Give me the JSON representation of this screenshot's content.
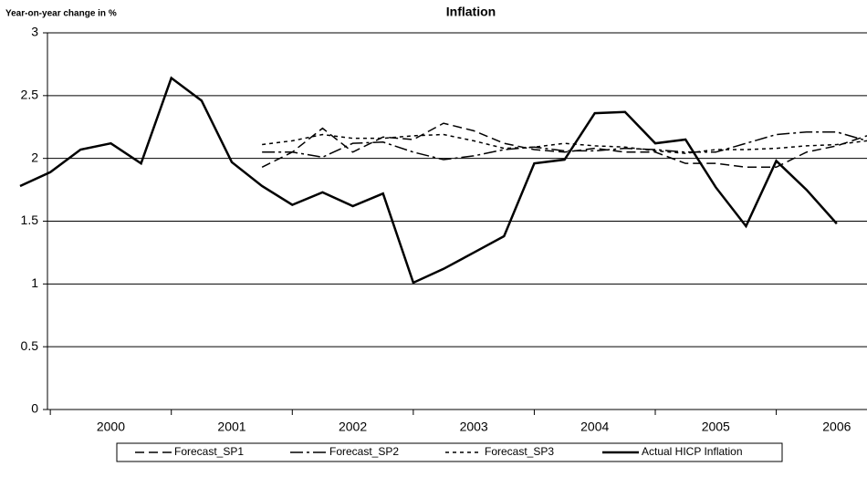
{
  "chart_data": {
    "type": "line",
    "title": "Inflation",
    "ylabel": "Year-on-year change in %",
    "x": [
      1999.75,
      2000,
      2000.25,
      2000.5,
      2000.75,
      2001,
      2001.25,
      2001.5,
      2001.75,
      2002,
      2002.25,
      2002.5,
      2002.75,
      2003,
      2003.25,
      2003.5,
      2003.75,
      2004,
      2004.25,
      2004.5,
      2004.75,
      2005,
      2005.25,
      2005.5,
      2005.75,
      2006,
      2006.25,
      2006.5,
      2006.75
    ],
    "xlim": [
      1999.75,
      2006.75
    ],
    "xticks": [
      {
        "value": 2000.5,
        "label": "2000"
      },
      {
        "value": 2001.5,
        "label": "2001"
      },
      {
        "value": 2002.5,
        "label": "2002"
      },
      {
        "value": 2003.5,
        "label": "2003"
      },
      {
        "value": 2004.5,
        "label": "2004"
      },
      {
        "value": 2005.5,
        "label": "2005"
      },
      {
        "value": 2006.5,
        "label": "2006"
      }
    ],
    "ylim": [
      0,
      3
    ],
    "yticks": [
      0,
      0.5,
      1,
      1.5,
      2,
      2.5,
      3
    ],
    "grid": true,
    "series": [
      {
        "name": "Forecast_SP1",
        "color": "#000000",
        "dash": "10,5",
        "values": [
          null,
          null,
          null,
          null,
          null,
          null,
          null,
          null,
          1.93,
          2.05,
          2.24,
          2.05,
          2.17,
          2.15,
          2.28,
          2.22,
          2.12,
          2.07,
          2.05,
          2.08,
          2.05,
          2.05,
          1.96,
          1.96,
          1.93,
          1.93,
          2.05,
          2.1,
          2.18
        ]
      },
      {
        "name": "Forecast_SP2",
        "color": "#000000",
        "dash": "14,4,3,4",
        "values": [
          null,
          null,
          null,
          null,
          null,
          null,
          null,
          null,
          2.05,
          2.05,
          2.01,
          2.12,
          2.13,
          2.05,
          1.99,
          2.02,
          2.07,
          2.09,
          2.06,
          2.06,
          2.08,
          2.07,
          2.05,
          2.05,
          2.12,
          2.19,
          2.21,
          2.21,
          2.14
        ]
      },
      {
        "name": "Forecast_SP3",
        "color": "#000000",
        "dash": "4,4",
        "values": [
          null,
          null,
          null,
          null,
          null,
          null,
          null,
          null,
          2.11,
          2.14,
          2.19,
          2.16,
          2.16,
          2.18,
          2.19,
          2.14,
          2.08,
          2.09,
          2.12,
          2.1,
          2.09,
          2.06,
          2.04,
          2.07,
          2.07,
          2.08,
          2.1,
          2.11,
          2.14
        ]
      },
      {
        "name": "Actual HICP Inflation",
        "color": "#000000",
        "dash": "none",
        "values": [
          1.78,
          1.89,
          2.07,
          2.12,
          1.96,
          2.64,
          2.46,
          1.97,
          1.78,
          1.63,
          1.73,
          1.62,
          1.72,
          1.01,
          1.12,
          1.25,
          1.38,
          1.96,
          1.99,
          2.36,
          2.37,
          2.12,
          2.15,
          1.77,
          1.46,
          1.98,
          1.75,
          1.48,
          null
        ]
      }
    ]
  }
}
